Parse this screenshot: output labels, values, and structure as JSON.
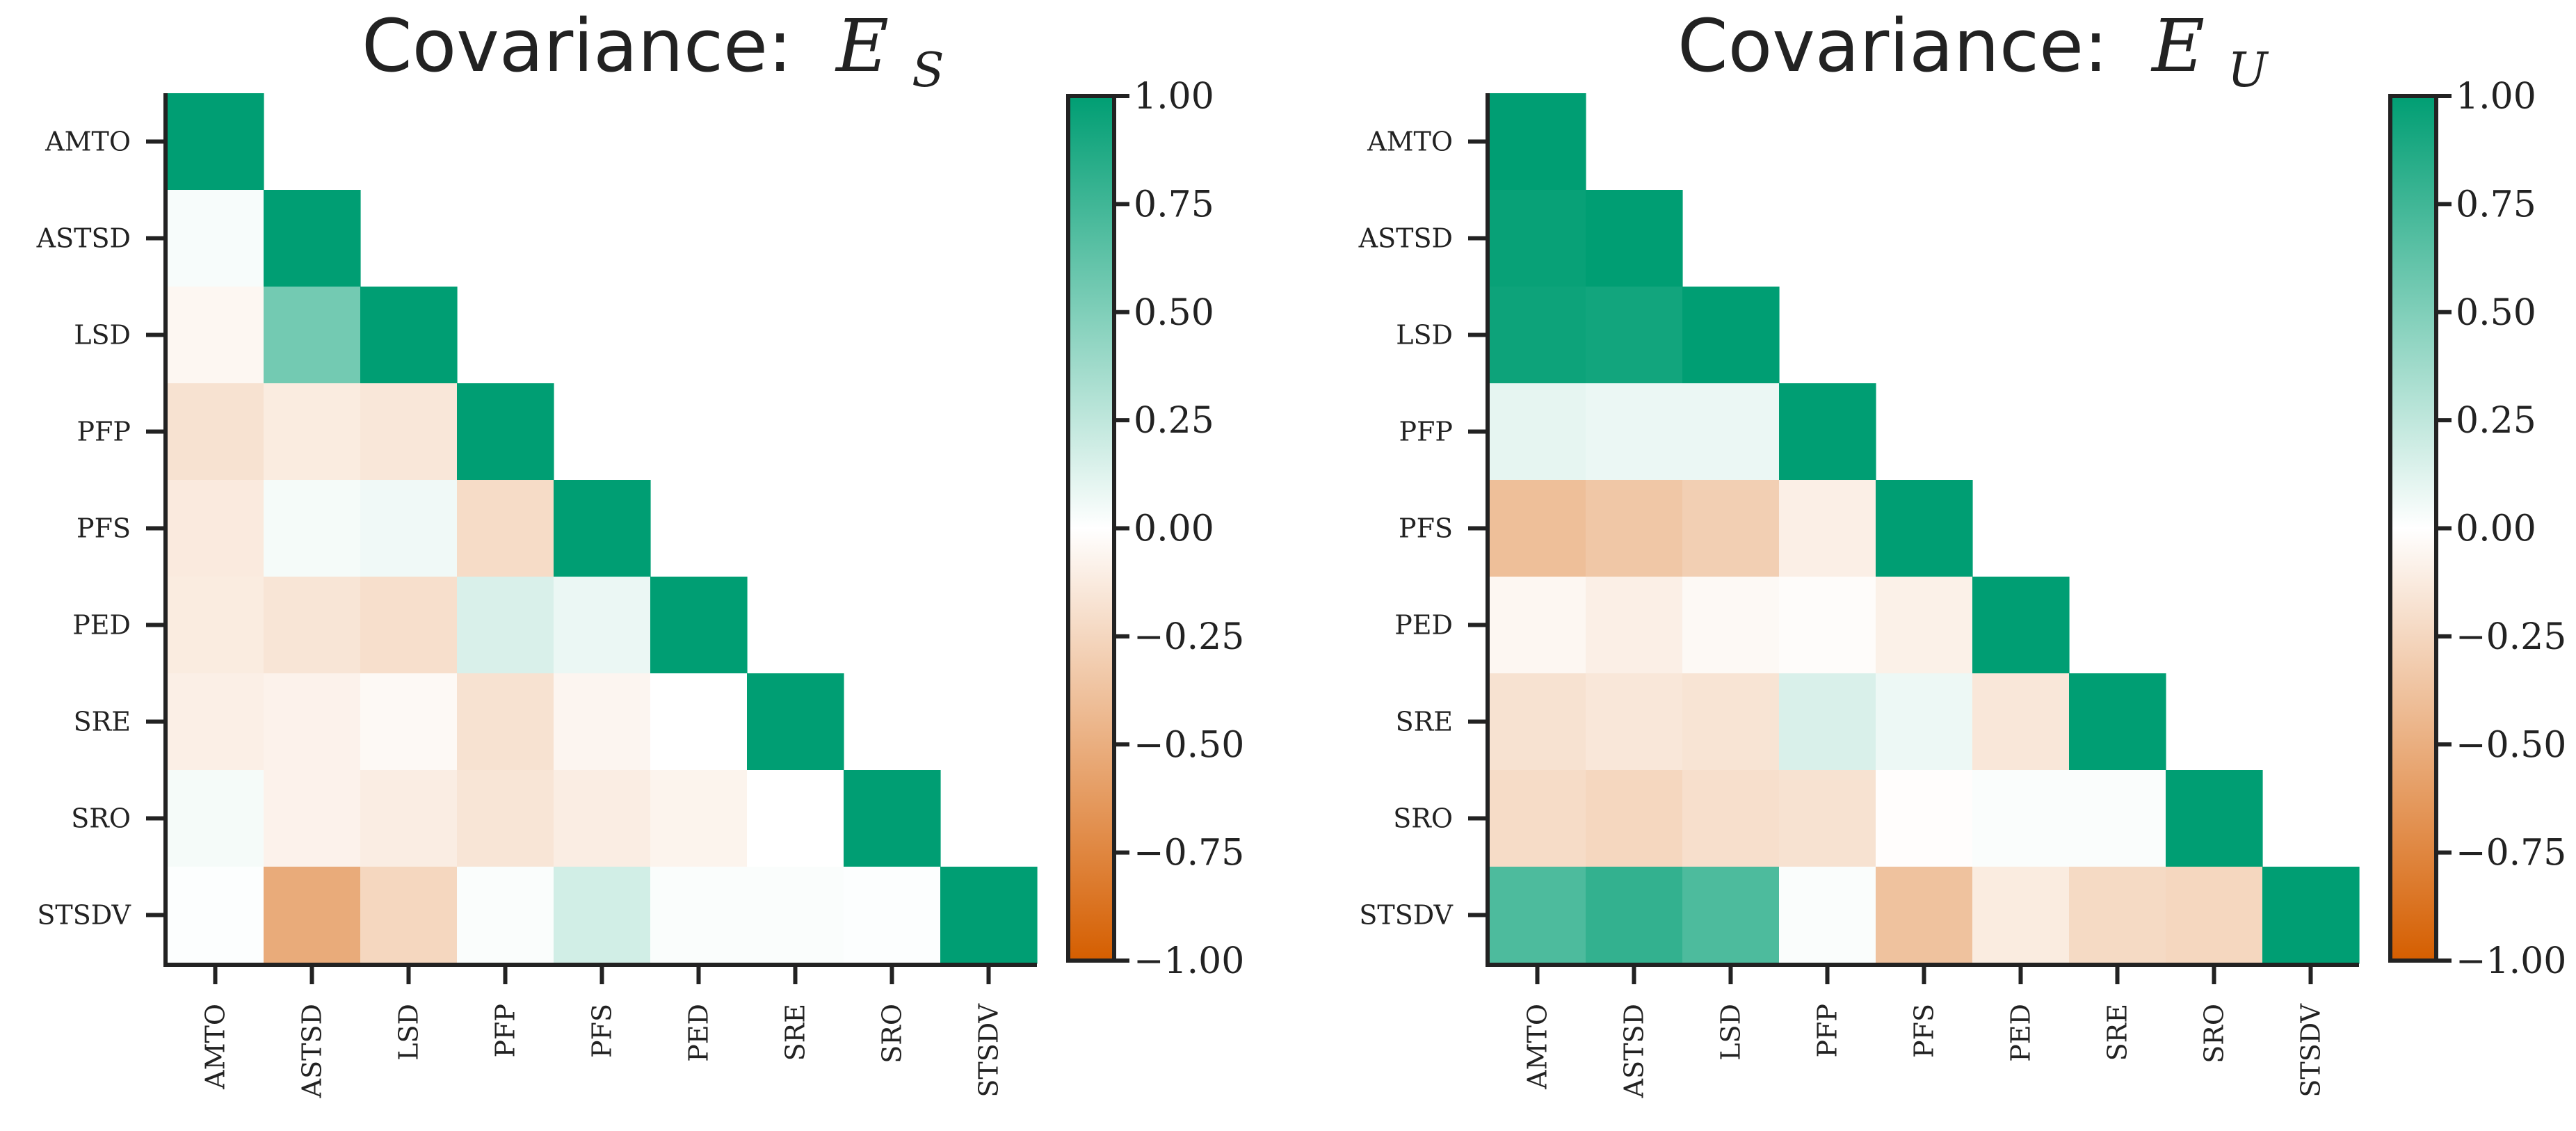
{
  "colors": {
    "negative": "#d55e00",
    "zero": "#ffffff",
    "positive": "#009e73",
    "axis": "#222222"
  },
  "chart_data": [
    {
      "type": "heatmap",
      "title_prefix": "Covariance:",
      "title_symbol": "E",
      "title_subscript": "S",
      "variables": [
        "AMTO",
        "ASTSD",
        "LSD",
        "PFP",
        "PFS",
        "PED",
        "SRE",
        "SRO",
        "STSDV"
      ],
      "lower_triangle": true,
      "colorbar": {
        "range": [
          -1.0,
          1.0
        ],
        "ticks": [
          "1.00",
          "0.75",
          "0.50",
          "0.25",
          "0.00",
          "−0.25",
          "−0.50",
          "−0.75",
          "−1.00"
        ],
        "tick_values": [
          1.0,
          0.75,
          0.5,
          0.25,
          0.0,
          -0.25,
          -0.5,
          -0.75,
          -1.0
        ]
      },
      "values": [
        [
          1.0
        ],
        [
          0.03,
          1.0
        ],
        [
          -0.05,
          0.55,
          1.0
        ],
        [
          -0.18,
          -0.12,
          -0.15,
          1.0
        ],
        [
          -0.13,
          0.04,
          0.06,
          -0.22,
          1.0
        ],
        [
          -0.12,
          -0.16,
          -0.2,
          0.15,
          0.08,
          1.0
        ],
        [
          -0.1,
          -0.08,
          -0.04,
          -0.18,
          -0.06,
          0.0,
          1.0
        ],
        [
          0.04,
          -0.08,
          -0.11,
          -0.16,
          -0.11,
          -0.07,
          0.0,
          1.0
        ],
        [
          0.01,
          -0.52,
          -0.25,
          0.02,
          0.18,
          0.02,
          0.02,
          0.01,
          1.0
        ]
      ]
    },
    {
      "type": "heatmap",
      "title_prefix": "Covariance:",
      "title_symbol": "E",
      "title_subscript": "U",
      "variables": [
        "AMTO",
        "ASTSD",
        "LSD",
        "PFP",
        "PFS",
        "PED",
        "SRE",
        "SRO",
        "STSDV"
      ],
      "lower_triangle": true,
      "colorbar": {
        "range": [
          -1.0,
          1.0
        ],
        "ticks": [
          "1.00",
          "0.75",
          "0.50",
          "0.25",
          "0.00",
          "−0.25",
          "−0.50",
          "−0.75",
          "−1.00"
        ],
        "tick_values": [
          1.0,
          0.75,
          0.5,
          0.25,
          0.0,
          -0.25,
          -0.5,
          -0.75,
          -1.0
        ]
      },
      "values": [
        [
          1.0
        ],
        [
          0.97,
          1.0
        ],
        [
          0.95,
          0.93,
          1.0
        ],
        [
          0.1,
          0.08,
          0.08,
          1.0
        ],
        [
          -0.4,
          -0.35,
          -0.3,
          -0.1,
          1.0
        ],
        [
          -0.05,
          -0.1,
          -0.04,
          -0.02,
          -0.09,
          1.0
        ],
        [
          -0.18,
          -0.15,
          -0.17,
          0.15,
          0.07,
          -0.15,
          1.0
        ],
        [
          -0.22,
          -0.25,
          -0.2,
          -0.18,
          -0.01,
          0.02,
          0.02,
          1.0
        ],
        [
          0.7,
          0.8,
          0.7,
          0.02,
          -0.38,
          -0.12,
          -0.23,
          -0.25,
          1.0
        ]
      ]
    }
  ]
}
